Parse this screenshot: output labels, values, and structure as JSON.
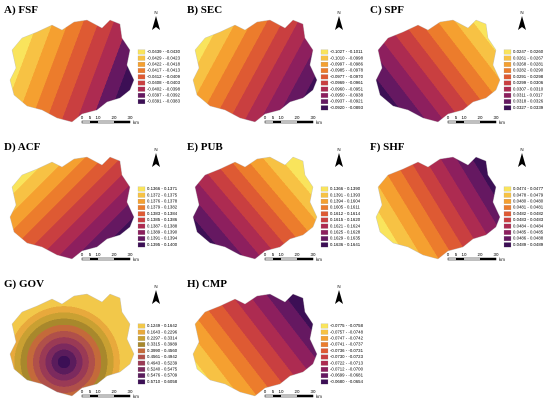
{
  "north": "N",
  "scale": {
    "ticks": [
      "0",
      "5",
      "10",
      "20",
      "30"
    ],
    "unit": "km"
  },
  "panels": [
    {
      "title": "A) FSF",
      "legend": [
        "-0.0439 - -0.0430",
        "-0.0429 - -0.0423",
        "-0.0422 - -0.0418",
        "-0.0417 - -0.0413",
        "-0.0412 - -0.0409",
        "-0.0408 - -0.0403",
        "-0.0402 - -0.0398",
        "-0.0397 - -0.0392",
        "-0.0391 - -0.0383"
      ],
      "colors": [
        "#f9e45c",
        "#f7c244",
        "#f5a030",
        "#ec7c2c",
        "#de5a33",
        "#c93f40",
        "#ad2b51",
        "#651861",
        "#3c0f55"
      ]
    },
    {
      "title": "B) SEC",
      "legend": [
        "-0.1027 - -0.1011",
        "-0.1010 - -0.0998",
        "-0.0997 - -0.0986",
        "-0.0985 - -0.0978",
        "-0.0977 - -0.0970",
        "-0.0969 - -0.0961",
        "-0.0960 - -0.0951",
        "-0.0950 - -0.0938",
        "-0.0937 - -0.0921",
        "-0.0920 - -0.0893"
      ],
      "colors": [
        "#f9e45c",
        "#f7c244",
        "#f5a030",
        "#ec7c2c",
        "#de5a33",
        "#c93f40",
        "#ad2b51",
        "#8d1f5e",
        "#651861",
        "#3c0f55"
      ]
    },
    {
      "title": "C) SPF",
      "legend": [
        "0.0247 - 0.0260",
        "0.0261 - 0.0267",
        "0.0268 - 0.0281",
        "0.0282 - 0.0290",
        "0.0291 - 0.0298",
        "0.0299 - 0.0306",
        "0.0307 - 0.0310",
        "0.0311 - 0.0317",
        "0.0318 - 0.0326",
        "0.0327 - 0.0339"
      ],
      "colors": [
        "#f9e45c",
        "#f7c244",
        "#f5a030",
        "#ec7c2c",
        "#de5a33",
        "#c93f40",
        "#ad2b51",
        "#8d1f5e",
        "#651861",
        "#3c0f55"
      ]
    },
    {
      "title": "D) ACF",
      "legend": [
        "0.1366 - 0.1371",
        "0.1372 - 0.1375",
        "0.1376 - 0.1378",
        "0.1379 - 0.1382",
        "0.1383 - 0.1384",
        "0.1385 - 0.1386",
        "0.1387 - 0.1388",
        "0.1389 - 0.1390",
        "0.1391 - 0.1394",
        "0.1395 - 0.1400"
      ],
      "colors": [
        "#f9e45c",
        "#f7c244",
        "#f5a030",
        "#ec7c2c",
        "#de5a33",
        "#c93f40",
        "#ad2b51",
        "#8d1f5e",
        "#651861",
        "#3c0f55"
      ]
    },
    {
      "title": "E) PUB",
      "legend": [
        "0.1366 - 0.1390",
        "0.1391 - 0.1393",
        "0.1394 - 0.1604",
        "0.1605 - 0.1611",
        "0.1612 - 0.1614",
        "0.1615 - 0.1620",
        "0.1621 - 0.1624",
        "0.1625 - 0.1628",
        "0.1629 - 0.1635",
        "0.1636 - 0.1641"
      ],
      "colors": [
        "#f9e45c",
        "#f7c244",
        "#f5a030",
        "#ec7c2c",
        "#de5a33",
        "#c93f40",
        "#ad2b51",
        "#8d1f5e",
        "#651861",
        "#3c0f55"
      ]
    },
    {
      "title": "F) SHF",
      "legend": [
        "0.0474 - 0.0477",
        "0.0478 - 0.0479",
        "0.0480 - 0.0480",
        "0.0481 - 0.0481",
        "0.0482 - 0.0482",
        "0.0483 - 0.0483",
        "0.0484 - 0.0484",
        "0.0485 - 0.0485",
        "0.0486 - 0.0488",
        "0.0489 - 0.0489"
      ],
      "colors": [
        "#f9e45c",
        "#f7c244",
        "#f5a030",
        "#ec7c2c",
        "#de5a33",
        "#c93f40",
        "#ad2b51",
        "#8d1f5e",
        "#651861",
        "#3c0f55"
      ]
    },
    {
      "title": "G) GOV",
      "legend": [
        "0.1249 - 0.1642",
        "0.1643 - 0.2296",
        "0.2297 - 0.3314",
        "0.3315 - 0.3989",
        "0.3990 - 0.4560",
        "0.4561 - 0.4942",
        "0.4943 - 0.5239",
        "0.5240 - 0.5475",
        "0.5476 - 0.5709",
        "0.5710 - 0.6058"
      ],
      "colors": [
        "#f2c84a",
        "#e8a93c",
        "#c9a032",
        "#a8882c",
        "#c46a3a",
        "#b0504a",
        "#9a3a55",
        "#7c2a5e",
        "#5a1c5c",
        "#3c0f55"
      ]
    },
    {
      "title": "H) CMP",
      "legend": [
        "-0.0775 - -0.0758",
        "-0.0757 - -0.0748",
        "-0.0747 - -0.0742",
        "-0.0741 - -0.0737",
        "-0.0736 - -0.0731",
        "-0.0730 - -0.0723",
        "-0.0722 - -0.0713",
        "-0.0712 - -0.0700",
        "-0.0699 - -0.0681",
        "-0.0680 - -0.0654"
      ],
      "colors": [
        "#f9e45c",
        "#f7c244",
        "#f5a030",
        "#ec7c2c",
        "#de5a33",
        "#c93f40",
        "#ad2b51",
        "#8d1f5e",
        "#651861",
        "#3c0f55"
      ]
    }
  ]
}
